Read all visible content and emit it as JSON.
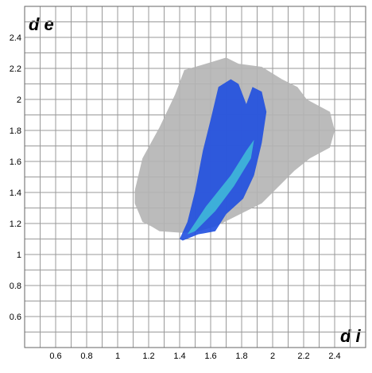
{
  "chart_data": {
    "type": "fingerprint",
    "xlabel": "d i",
    "ylabel": "d e",
    "xlim": [
      0.4,
      2.6
    ],
    "ylim": [
      0.4,
      2.6
    ],
    "xticks": [
      0.6,
      0.8,
      1.0,
      1.2,
      1.4,
      1.6,
      1.8,
      2.0,
      2.2,
      2.4
    ],
    "yticks": [
      0.6,
      0.8,
      1.0,
      1.2,
      1.4,
      1.6,
      1.8,
      2.0,
      2.2,
      2.4
    ],
    "minor_xticks": [
      0.5,
      0.7,
      0.9,
      1.1,
      1.3,
      1.5,
      1.7,
      1.9,
      2.1,
      2.3,
      2.5
    ],
    "minor_yticks": [
      0.5,
      0.7,
      0.9,
      1.1,
      1.3,
      1.5,
      1.7,
      1.9,
      2.1,
      2.3,
      2.5
    ],
    "grid": true,
    "regions": [
      {
        "color": "#b4b4b4",
        "x": [
          1.11,
          1.16,
          1.27,
          1.37,
          1.43,
          1.57,
          1.7,
          1.78,
          1.93,
          2.06,
          2.16,
          2.22,
          2.37,
          2.4,
          2.37,
          2.24,
          2.14,
          2.04,
          1.93,
          1.83,
          1.73,
          1.63,
          1.52,
          1.42,
          1.27,
          1.22,
          1.16,
          1.14,
          1.11
        ],
        "y": [
          1.41,
          1.62,
          1.82,
          2.03,
          2.19,
          2.23,
          2.27,
          2.23,
          2.21,
          2.13,
          2.08,
          2.0,
          1.92,
          1.8,
          1.69,
          1.62,
          1.54,
          1.44,
          1.33,
          1.28,
          1.23,
          1.18,
          1.15,
          1.14,
          1.15,
          1.18,
          1.21,
          1.26,
          1.33
        ]
      },
      {
        "color": "#1f4fe0",
        "x": [
          1.4,
          1.45,
          1.5,
          1.55,
          1.6,
          1.65,
          1.73,
          1.78,
          1.83,
          1.87,
          1.93,
          1.96,
          1.93,
          1.88,
          1.81,
          1.7,
          1.63,
          1.52,
          1.42
        ],
        "y": [
          1.1,
          1.21,
          1.41,
          1.67,
          1.87,
          2.08,
          2.13,
          2.1,
          1.97,
          2.08,
          2.05,
          1.92,
          1.72,
          1.51,
          1.36,
          1.26,
          1.15,
          1.13,
          1.09
        ]
      },
      {
        "color": "#3fb8d8",
        "x": [
          1.45,
          1.57,
          1.73,
          1.83,
          1.88,
          1.86,
          1.75,
          1.63,
          1.5
        ],
        "y": [
          1.13,
          1.31,
          1.51,
          1.67,
          1.74,
          1.62,
          1.44,
          1.28,
          1.15
        ]
      }
    ]
  }
}
